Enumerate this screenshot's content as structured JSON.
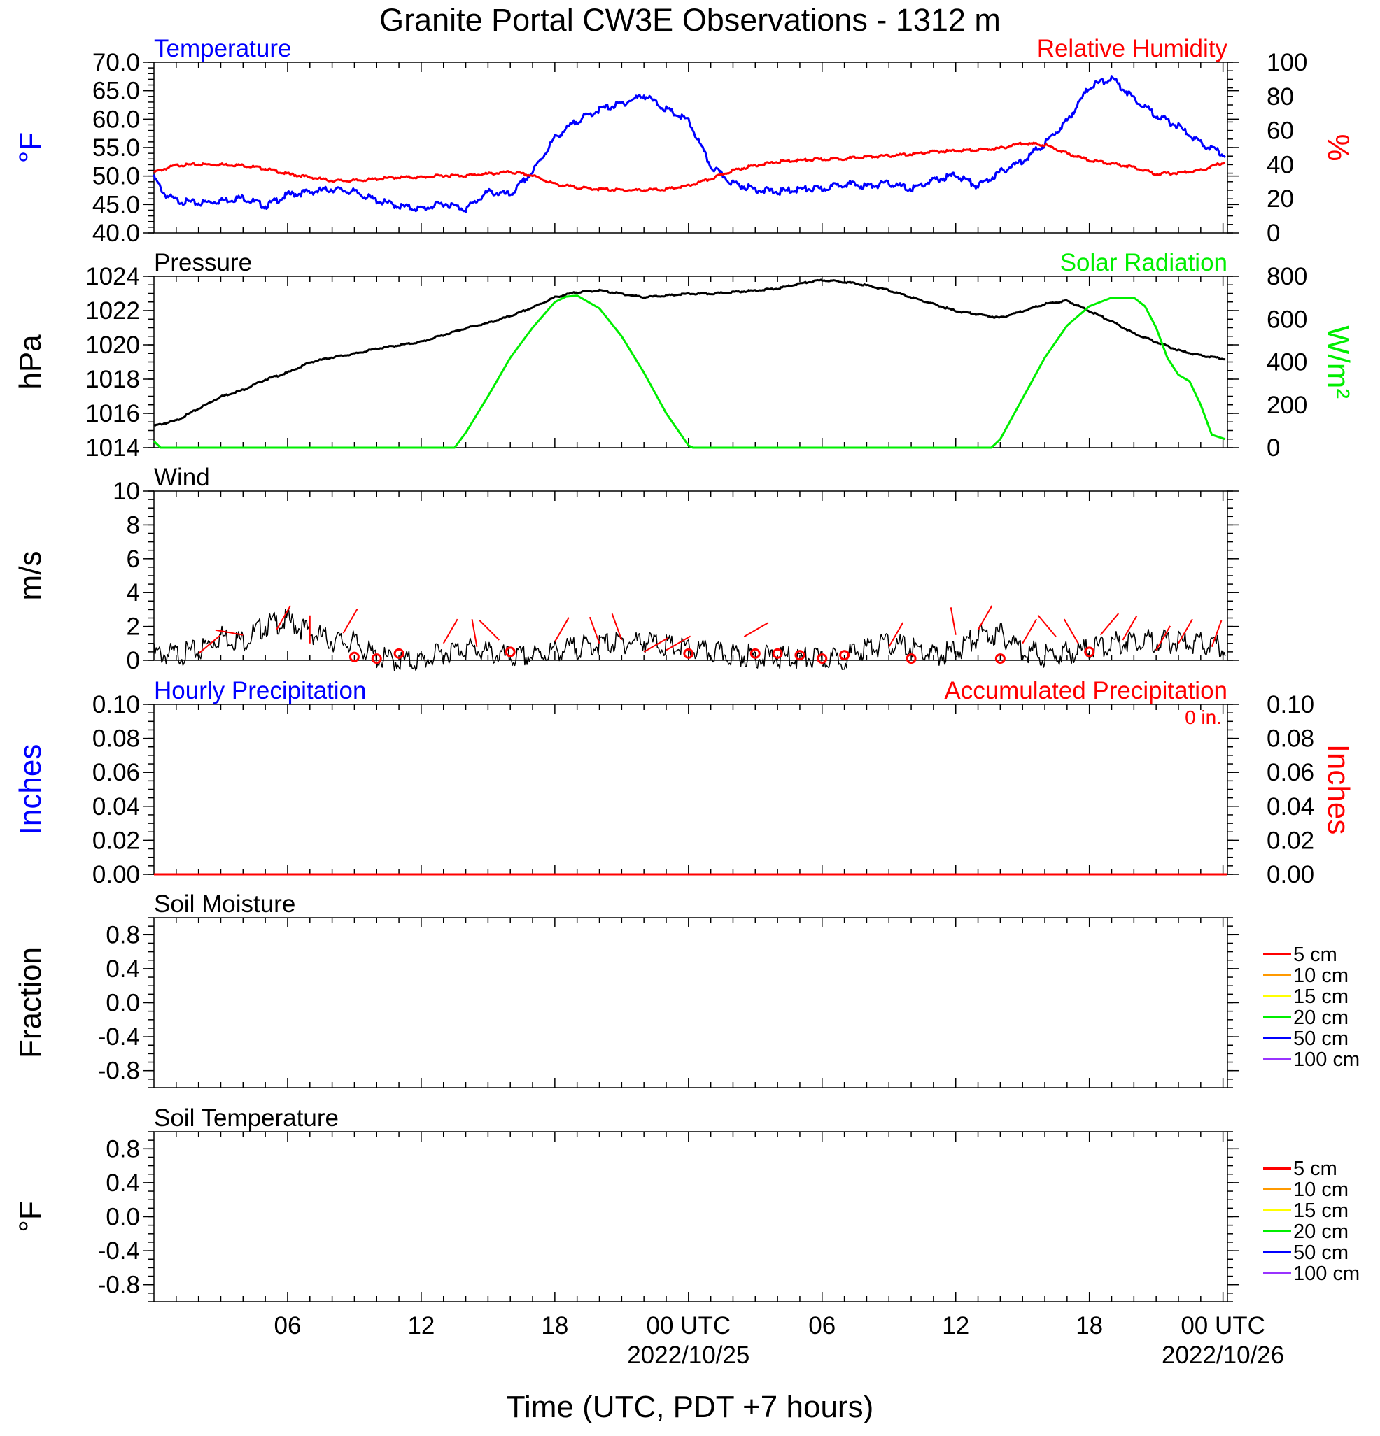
{
  "title": "Granite Portal CW3E Observations - 1312 m",
  "x_axis": {
    "xlabel": "Time (UTC, PDT +7 hours)",
    "ticks": [
      {
        "hour": 6,
        "label": "06",
        "date": ""
      },
      {
        "hour": 12,
        "label": "12",
        "date": ""
      },
      {
        "hour": 18,
        "label": "18",
        "date": ""
      },
      {
        "hour": 24,
        "label": "00 UTC",
        "date": "2022/10/25"
      },
      {
        "hour": 30,
        "label": "06",
        "date": ""
      },
      {
        "hour": 36,
        "label": "12",
        "date": ""
      },
      {
        "hour": 42,
        "label": "18",
        "date": ""
      },
      {
        "hour": 48,
        "label": "00 UTC",
        "date": "2022/10/26"
      }
    ]
  },
  "panels": {
    "temp_rh": {
      "left_title": "Temperature",
      "right_title": "Relative Humidity",
      "left_label": "°F",
      "right_label": "%",
      "left_ticks": [
        "40.0",
        "45.0",
        "50.0",
        "55.0",
        "60.0",
        "65.0",
        "70.0"
      ],
      "right_ticks": [
        "0",
        "20",
        "40",
        "60",
        "80",
        "100"
      ]
    },
    "pressure_solar": {
      "left_title": "Pressure",
      "right_title": "Solar Radiation",
      "left_label": "hPa",
      "right_label": "W/m²",
      "left_ticks": [
        "1014",
        "1016",
        "1018",
        "1020",
        "1022",
        "1024"
      ],
      "right_ticks": [
        "0",
        "200",
        "400",
        "600",
        "800"
      ]
    },
    "wind": {
      "left_title": "Wind",
      "left_label": "m/s",
      "left_ticks": [
        "0",
        "2",
        "4",
        "6",
        "8",
        "10"
      ]
    },
    "precip": {
      "left_title": "Hourly Precipitation",
      "right_title": "Accumulated Precipitation",
      "accum_total": "0 in.",
      "left_label": "Inches",
      "right_label": "Inches",
      "left_ticks": [
        "0.00",
        "0.02",
        "0.04",
        "0.06",
        "0.08",
        "0.10"
      ],
      "right_ticks": [
        "0.00",
        "0.02",
        "0.04",
        "0.06",
        "0.08",
        "0.10"
      ]
    },
    "soil_moisture": {
      "left_title": "Soil Moisture",
      "left_label": "Fraction",
      "left_ticks": [
        "-0.8",
        "-0.4",
        "0.0",
        "0.4",
        "0.8"
      ]
    },
    "soil_temp": {
      "left_title": "Soil Temperature",
      "left_label": "°F",
      "left_ticks": [
        "-0.8",
        "-0.4",
        "0.0",
        "0.4",
        "0.8"
      ]
    }
  },
  "soil_legend": [
    {
      "label": "5 cm",
      "color": "#ff0000"
    },
    {
      "label": "10 cm",
      "color": "#ff9900"
    },
    {
      "label": "15 cm",
      "color": "#ffff00"
    },
    {
      "label": "20 cm",
      "color": "#00ee00"
    },
    {
      "label": "50 cm",
      "color": "#0000ff"
    },
    {
      "label": "100 cm",
      "color": "#9933ff"
    }
  ],
  "chart_data": [
    {
      "type": "line",
      "panel": "temp_rh",
      "x_unit": "hours since 2022-10-24 01 UTC",
      "xlim": [
        0,
        48.2
      ],
      "series": [
        {
          "name": "Temperature",
          "axis": "left",
          "unit": "°F",
          "color": "#0000ff",
          "ylim": [
            40,
            70
          ],
          "x": [
            0,
            0.5,
            1,
            2,
            3,
            4,
            5,
            6,
            7,
            8,
            9,
            10,
            11,
            12,
            13,
            14,
            15,
            16,
            17,
            18,
            19,
            20,
            21,
            22,
            23,
            24,
            25,
            26,
            27,
            28,
            29,
            30,
            31,
            32,
            33,
            34,
            35,
            36,
            37,
            38,
            39,
            40,
            41,
            42,
            43,
            44,
            45,
            46,
            47,
            48.1
          ],
          "y": [
            50,
            47,
            46,
            45.5,
            46,
            46.5,
            45,
            47,
            47.5,
            48,
            47.5,
            46,
            45,
            44.5,
            45.5,
            44.5,
            47.5,
            47,
            51,
            57,
            60,
            62,
            63,
            64.5,
            62,
            60,
            52,
            49,
            48,
            47.5,
            48,
            48,
            49,
            48.5,
            49,
            48,
            49.5,
            50.5,
            48.5,
            51,
            53,
            56,
            60,
            66,
            67.5,
            64,
            61,
            59,
            56,
            54
          ]
        },
        {
          "name": "Relative Humidity",
          "axis": "right",
          "unit": "%",
          "color": "#ff0000",
          "ylim": [
            0,
            100
          ],
          "x": [
            0,
            1,
            2,
            3,
            4,
            5,
            6,
            7,
            8,
            9,
            10,
            11,
            12,
            13,
            14,
            15,
            16,
            17,
            18,
            19,
            20,
            21,
            22,
            23,
            24,
            25,
            26,
            27,
            28,
            29,
            30,
            31,
            32,
            33,
            34,
            35,
            36,
            37,
            38,
            39,
            40,
            41,
            42,
            43,
            44,
            45,
            46,
            47,
            48.1
          ],
          "y": [
            36,
            40,
            40.5,
            40.5,
            40,
            38,
            35,
            33,
            31,
            31,
            32,
            33,
            33,
            34,
            34,
            35,
            36,
            34,
            29,
            27,
            26,
            25.5,
            25.5,
            26,
            28,
            32,
            37,
            40,
            42,
            43,
            43.5,
            44,
            45,
            45.5,
            46.5,
            48,
            48.5,
            49,
            50,
            53,
            52,
            47,
            43,
            41,
            39,
            35,
            35.5,
            37,
            42
          ]
        }
      ]
    },
    {
      "type": "line",
      "panel": "pressure_solar",
      "x_unit": "hours since 2022-10-24 01 UTC",
      "xlim": [
        0,
        48.2
      ],
      "series": [
        {
          "name": "Pressure",
          "axis": "left",
          "unit": "hPa",
          "color": "#000000",
          "ylim": [
            1014,
            1024
          ],
          "x": [
            0,
            1,
            2,
            3,
            4,
            5,
            6,
            7,
            8,
            9,
            10,
            11,
            12,
            13,
            14,
            15,
            16,
            17,
            18,
            19,
            20,
            21,
            22,
            23,
            24,
            25,
            26,
            27,
            28,
            29,
            30,
            31,
            32,
            33,
            34,
            35,
            36,
            37,
            38,
            39,
            40,
            41,
            42,
            43,
            44,
            45,
            46,
            47,
            48.1
          ],
          "y": [
            1015.3,
            1015.6,
            1016.3,
            1017,
            1017.4,
            1018,
            1018.4,
            1019,
            1019.3,
            1019.5,
            1019.8,
            1020,
            1020.2,
            1020.6,
            1021,
            1021.3,
            1021.7,
            1022.2,
            1022.8,
            1023.1,
            1023.2,
            1023,
            1022.8,
            1022.9,
            1023.0,
            1023.0,
            1023.1,
            1023.2,
            1023.3,
            1023.6,
            1023.8,
            1023.7,
            1023.5,
            1023.2,
            1022.8,
            1022.4,
            1022.0,
            1021.8,
            1021.6,
            1022.0,
            1022.4,
            1022.6,
            1022.0,
            1021.4,
            1020.7,
            1020.2,
            1019.7,
            1019.4,
            1019.2
          ]
        },
        {
          "name": "Solar Radiation",
          "axis": "right",
          "unit": "W/m²",
          "color": "#00ee00",
          "ylim": [
            0,
            800
          ],
          "x": [
            0,
            0.3,
            13.5,
            14,
            15,
            16,
            17,
            18,
            18.5,
            19,
            20,
            21,
            22,
            23,
            24,
            24.2,
            37.6,
            38,
            39,
            40,
            41,
            42,
            43,
            44,
            44.5,
            45,
            45.5,
            46,
            46.5,
            47,
            47.5,
            48.1
          ],
          "y": [
            30,
            0,
            0,
            70,
            240,
            420,
            560,
            680,
            705,
            710,
            650,
            520,
            350,
            160,
            10,
            0,
            0,
            40,
            230,
            420,
            570,
            660,
            700,
            700,
            660,
            560,
            420,
            340,
            310,
            200,
            60,
            40
          ]
        }
      ]
    },
    {
      "type": "line",
      "panel": "wind",
      "x_unit": "hours since 2022-10-24 01 UTC",
      "xlim": [
        0,
        48.2
      ],
      "ylim": [
        0,
        10
      ],
      "series": [
        {
          "name": "Wind",
          "unit": "m/s",
          "color": "#000000",
          "x": [
            0,
            1,
            2,
            3,
            4,
            5,
            6,
            7,
            8,
            9,
            10,
            11,
            12,
            13,
            14,
            15,
            16,
            17,
            18,
            19,
            20,
            21,
            22,
            23,
            24,
            25,
            26,
            27,
            28,
            29,
            30,
            31,
            32,
            33,
            34,
            35,
            36,
            37,
            38,
            39,
            40,
            41,
            42,
            43,
            44,
            45,
            46,
            47,
            48.1
          ],
          "y": [
            0.7,
            0.7,
            0.9,
            1.8,
            1.5,
            2.4,
            2.7,
            2.0,
            1.5,
            1.4,
            0.5,
            0.3,
            0.3,
            0.8,
            1.1,
            0.8,
            0.5,
            0.6,
            0.9,
            1.1,
            1.3,
            1.4,
            1.5,
            1.2,
            1.0,
            0.8,
            0.7,
            0.6,
            0.5,
            0.5,
            0.4,
            0.5,
            1.1,
            1.3,
            1.1,
            0.6,
            0.9,
            1.8,
            1.9,
            1.0,
            0.6,
            0.8,
            1.0,
            1.3,
            1.6,
            1.5,
            1.4,
            1.3,
            1.1
          ]
        }
      ]
    },
    {
      "type": "line",
      "panel": "precip",
      "x_unit": "hours since 2022-10-24 01 UTC",
      "xlim": [
        0,
        48.2
      ],
      "ylim": [
        0,
        0.1
      ],
      "series": [
        {
          "name": "Hourly Precipitation",
          "axis": "left",
          "unit": "in",
          "color": "#0000ff",
          "x": [
            0,
            48.2
          ],
          "y": [
            0,
            0
          ]
        },
        {
          "name": "Accumulated Precipitation",
          "axis": "right",
          "unit": "in",
          "color": "#ff0000",
          "x": [
            0,
            48.2
          ],
          "y": [
            0,
            0
          ]
        }
      ]
    }
  ]
}
